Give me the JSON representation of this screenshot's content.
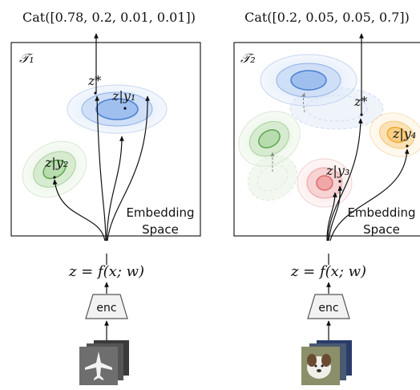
{
  "colors": {
    "blue": "#4a7fd0",
    "green": "#5aa64e",
    "red": "#e06a6a",
    "orange": "#f0a830",
    "ink": "#111111"
  },
  "left": {
    "top_label": "Cat([0.78, 0.2, 0.01, 0.01])",
    "task_label": "𝒯₁",
    "z_star": "z*",
    "cluster_blue_label": "z|y₁",
    "cluster_green_label": "z|y₂",
    "embedding_line1": "Embedding",
    "embedding_line2": "Space",
    "formula": "z = f(x; w)",
    "enc_label": "enc",
    "image_icon": "airplane-image-icon"
  },
  "right": {
    "top_label": "Cat([0.2, 0.05, 0.05, 0.7])",
    "task_label": "𝒯₂",
    "z_star": "z*",
    "cluster_red_label": "z|y₃",
    "cluster_orange_label": "z|y₄",
    "embedding_line1": "Embedding",
    "embedding_line2": "Space",
    "formula": "z = f(x; w)",
    "enc_label": "enc",
    "image_icon": "dog-image-icon"
  }
}
